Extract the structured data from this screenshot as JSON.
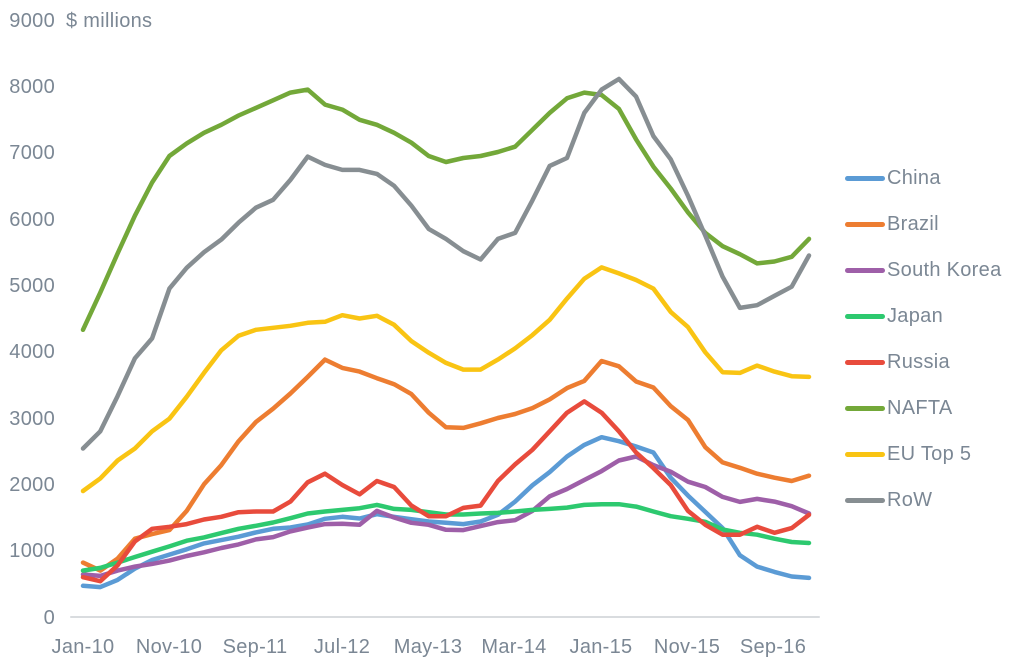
{
  "chart_data": {
    "type": "line",
    "title": "",
    "y_axis": {
      "unit_label": "$ millions",
      "min": 0,
      "max": 9000,
      "tick_labels": [
        "9000",
        "8000",
        "7000",
        "6000",
        "5000",
        "4000",
        "3000",
        "2000",
        "1000",
        "0"
      ]
    },
    "x_axis": {
      "months_total": 84,
      "tick_months": [
        0,
        10,
        20,
        30,
        40,
        50,
        60,
        70,
        80
      ],
      "tick_labels": [
        "Jan-10",
        "Nov-10",
        "Sep-11",
        "Jul-12",
        "May-13",
        "Mar-14",
        "Jan-15",
        "Nov-15",
        "Sep-16"
      ]
    },
    "sampling_interval_months": 2,
    "grid": false,
    "legend_position": "right",
    "series": [
      {
        "name": "China",
        "color": "#5B9BD5",
        "values": [
          470,
          450,
          560,
          730,
          860,
          940,
          1020,
          1110,
          1160,
          1210,
          1275,
          1330,
          1350,
          1395,
          1480,
          1510,
          1485,
          1550,
          1510,
          1475,
          1440,
          1420,
          1400,
          1440,
          1540,
          1740,
          1985,
          2185,
          2420,
          2595,
          2710,
          2650,
          2570,
          2480,
          2100,
          1830,
          1585,
          1340,
          930,
          760,
          680,
          610,
          590
        ]
      },
      {
        "name": "Brazil",
        "color": "#ED7D31",
        "values": [
          820,
          700,
          880,
          1180,
          1250,
          1310,
          1600,
          2000,
          2290,
          2650,
          2940,
          3140,
          3370,
          3620,
          3880,
          3755,
          3700,
          3600,
          3510,
          3360,
          3080,
          2860,
          2850,
          2920,
          3000,
          3060,
          3150,
          3280,
          3450,
          3560,
          3860,
          3780,
          3550,
          3460,
          3180,
          2970,
          2560,
          2330,
          2250,
          2160,
          2100,
          2050,
          2130
        ]
      },
      {
        "name": "South Korea",
        "color": "#9E5FA8",
        "values": [
          640,
          620,
          700,
          760,
          800,
          850,
          920,
          975,
          1040,
          1095,
          1170,
          1205,
          1290,
          1350,
          1400,
          1405,
          1390,
          1600,
          1500,
          1420,
          1390,
          1315,
          1310,
          1370,
          1430,
          1460,
          1600,
          1820,
          1930,
          2065,
          2200,
          2360,
          2420,
          2290,
          2190,
          2040,
          1960,
          1810,
          1735,
          1780,
          1740,
          1670,
          1560
        ]
      },
      {
        "name": "Japan",
        "color": "#2DC96F",
        "values": [
          700,
          740,
          820,
          905,
          985,
          1065,
          1150,
          1200,
          1265,
          1330,
          1375,
          1425,
          1490,
          1560,
          1590,
          1615,
          1640,
          1690,
          1630,
          1615,
          1580,
          1545,
          1545,
          1560,
          1570,
          1590,
          1615,
          1630,
          1650,
          1690,
          1700,
          1700,
          1665,
          1590,
          1520,
          1480,
          1435,
          1320,
          1270,
          1240,
          1180,
          1130,
          1115
        ]
      },
      {
        "name": "Russia",
        "color": "#E84B3C",
        "values": [
          600,
          540,
          780,
          1140,
          1330,
          1360,
          1400,
          1470,
          1510,
          1580,
          1590,
          1590,
          1740,
          2030,
          2160,
          1990,
          1850,
          2050,
          1960,
          1680,
          1520,
          1520,
          1645,
          1680,
          2050,
          2300,
          2520,
          2800,
          3080,
          3250,
          3080,
          2800,
          2480,
          2245,
          1990,
          1600,
          1390,
          1240,
          1240,
          1360,
          1270,
          1340,
          1540
        ]
      },
      {
        "name": "NAFTA",
        "color": "#73A839",
        "values": [
          4330,
          4890,
          5480,
          6050,
          6550,
          6950,
          7140,
          7300,
          7420,
          7560,
          7675,
          7790,
          7905,
          7950,
          7725,
          7650,
          7495,
          7420,
          7300,
          7150,
          6950,
          6860,
          6920,
          6950,
          7010,
          7090,
          7345,
          7600,
          7820,
          7905,
          7870,
          7660,
          7200,
          6790,
          6460,
          6100,
          5790,
          5590,
          5470,
          5330,
          5360,
          5430,
          5700
        ]
      },
      {
        "name": "EU Top 5",
        "color": "#F9C413",
        "values": [
          1900,
          2090,
          2360,
          2540,
          2800,
          2990,
          3320,
          3680,
          4020,
          4240,
          4330,
          4360,
          4390,
          4435,
          4450,
          4550,
          4500,
          4540,
          4405,
          4160,
          3985,
          3830,
          3730,
          3730,
          3880,
          4050,
          4250,
          4480,
          4800,
          5100,
          5270,
          5180,
          5080,
          4950,
          4600,
          4370,
          3990,
          3690,
          3680,
          3790,
          3700,
          3630,
          3620
        ]
      },
      {
        "name": "RoW",
        "color": "#878E92",
        "values": [
          2540,
          2800,
          3330,
          3900,
          4200,
          4950,
          5265,
          5500,
          5690,
          5945,
          6170,
          6290,
          6590,
          6940,
          6815,
          6740,
          6740,
          6680,
          6500,
          6200,
          5850,
          5700,
          5515,
          5390,
          5700,
          5790,
          6280,
          6800,
          6920,
          7600,
          7950,
          8110,
          7845,
          7250,
          6900,
          6350,
          5750,
          5130,
          4660,
          4700,
          4840,
          4980,
          5450
        ]
      }
    ]
  }
}
